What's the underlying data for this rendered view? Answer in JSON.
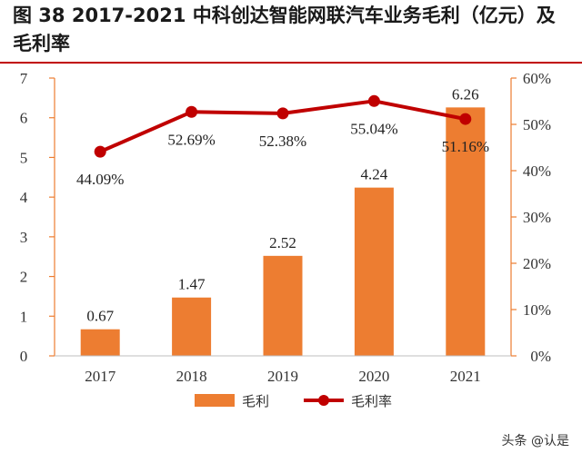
{
  "title": "图 38 2017-2021 中科创达智能网联汽车业务毛利（亿元）及毛利率",
  "chart_data": {
    "type": "bar+line",
    "categories": [
      "2017",
      "2018",
      "2019",
      "2020",
      "2021"
    ],
    "series": [
      {
        "name": "毛利",
        "type": "bar",
        "axis": "left",
        "values": [
          0.67,
          1.47,
          2.52,
          4.24,
          6.26
        ],
        "labels": [
          "0.67",
          "1.47",
          "2.52",
          "4.24",
          "6.26"
        ]
      },
      {
        "name": "毛利率",
        "type": "line",
        "axis": "right",
        "values": [
          44.09,
          52.69,
          52.38,
          55.04,
          51.16
        ],
        "labels": [
          "44.09%",
          "52.69%",
          "52.38%",
          "55.04%",
          "51.16%"
        ]
      }
    ],
    "y_left": {
      "min": 0,
      "max": 7,
      "ticks": [
        "0",
        "1",
        "2",
        "3",
        "4",
        "5",
        "6",
        "7"
      ]
    },
    "y_right": {
      "min": 0,
      "max": 60,
      "ticks": [
        "0%",
        "10%",
        "20%",
        "30%",
        "40%",
        "50%",
        "60%"
      ]
    },
    "legend_position": "bottom-center",
    "grid": false
  },
  "colors": {
    "bar": "#ED7D31",
    "line": "#C00000",
    "axis": "#ED7D31",
    "title_rule": "#C00000"
  },
  "watermark": "头条 @认是"
}
